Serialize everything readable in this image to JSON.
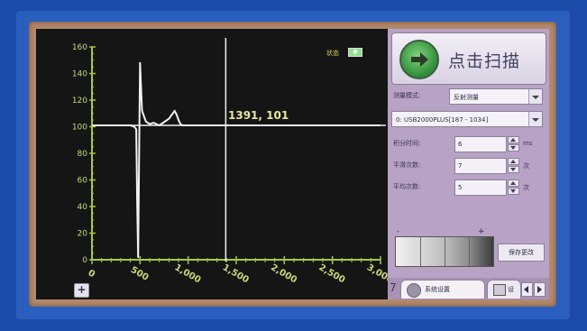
{
  "chart_data": {
    "type": "line",
    "x_ticks": [
      "0",
      "500",
      "1,000",
      "1,500",
      "2,000",
      "2,500",
      "3,000"
    ],
    "y_ticks": [
      "0",
      "20",
      "40",
      "60",
      "80",
      "100",
      "120",
      "140",
      "160"
    ],
    "xlim": [
      0,
      3000
    ],
    "ylim": [
      0,
      160
    ],
    "grid": false,
    "series": [
      {
        "x": [
          0,
          300,
          400,
          440,
          460,
          470,
          480,
          490,
          500,
          520,
          560,
          600,
          640,
          700,
          760,
          800,
          840,
          860,
          880,
          900,
          920,
          940,
          980,
          1050,
          1150,
          1300,
          1600,
          2000,
          2500,
          3000
        ],
        "y": [
          101,
          101,
          101,
          100,
          98,
          45,
          2,
          80,
          148,
          112,
          104,
          102,
          103,
          101,
          104,
          106,
          110,
          112,
          109,
          105,
          102,
          101,
          101,
          101,
          101,
          101,
          101,
          101,
          101,
          101
        ]
      }
    ],
    "cursor": {
      "x": 1391,
      "y": 101
    }
  },
  "plot": {
    "cursor_readout": "1391, 101",
    "status_label": "状态",
    "colors": {
      "trace": "#f2f2f2",
      "axis": "#a6c840",
      "crosshair": "#f0f0f0",
      "background": "#151515"
    }
  },
  "side_panel": {
    "scan_button_label": "点击扫描",
    "scan_icon": "arrow-right-icon",
    "measure_mode_label": "测量模式:",
    "measure_mode_value": "反射测量",
    "device_value": "0: USB2000PLUS[187 - 1034]",
    "integration_time_label": "积分时间:",
    "integration_time_value": "6",
    "integration_time_unit": "ms",
    "smoothing_label": "平滑次数:",
    "smoothing_value": "7",
    "smoothing_unit": "次",
    "average_label": "平均次数:",
    "average_value": "5",
    "average_unit": "次",
    "slider_minus": "-",
    "slider_plus": "+",
    "save_button_label": "保存更改",
    "tab_index": "7",
    "tab_measure_label": "系统设置",
    "tab_second_label": "设"
  }
}
